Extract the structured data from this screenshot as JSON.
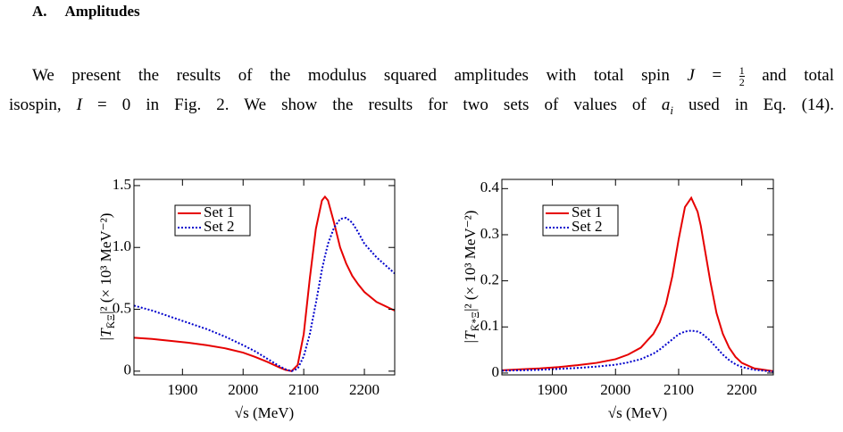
{
  "heading": {
    "number": "A.",
    "title": "Amplitudes"
  },
  "paragraph": {
    "line1": [
      "We present the results of the modulus squared amplitudes with total spin ",
      "J",
      " = ",
      "1",
      "2",
      " and total"
    ],
    "line2": [
      "isospin, ",
      "I",
      " = 0 in Fig. 2. We show the results for two sets of values of ",
      "a",
      "i",
      " used in Eq. (14)."
    ]
  },
  "chart_data": [
    {
      "type": "line",
      "ylabel": [
        "|T",
        "K̄Ξ",
        "|² (× 10³ MeV⁻²)"
      ],
      "xlabel": "√s (MeV)",
      "x": [
        1820,
        1850,
        1880,
        1910,
        1940,
        1970,
        2000,
        2020,
        2040,
        2060,
        2070,
        2080,
        2090,
        2100,
        2110,
        2120,
        2130,
        2135,
        2140,
        2150,
        2160,
        2170,
        2180,
        2190,
        2200,
        2220,
        2250
      ],
      "series": [
        {
          "name": "Set 1",
          "color": "#e60000",
          "linestyle": "solid",
          "values": [
            0.27,
            0.26,
            0.245,
            0.23,
            0.21,
            0.185,
            0.15,
            0.115,
            0.075,
            0.03,
            0.01,
            0.0,
            0.05,
            0.3,
            0.75,
            1.15,
            1.38,
            1.41,
            1.38,
            1.2,
            1.0,
            0.87,
            0.77,
            0.7,
            0.64,
            0.56,
            0.49
          ]
        },
        {
          "name": "Set 2",
          "color": "#0000cc",
          "linestyle": "dotted",
          "values": [
            0.53,
            0.49,
            0.44,
            0.39,
            0.34,
            0.28,
            0.21,
            0.16,
            0.1,
            0.04,
            0.015,
            0.0,
            0.02,
            0.12,
            0.3,
            0.55,
            0.82,
            0.93,
            1.03,
            1.16,
            1.23,
            1.24,
            1.2,
            1.12,
            1.03,
            0.92,
            0.79
          ]
        }
      ],
      "xlim": [
        1820,
        2250
      ],
      "xticks": [
        1900,
        2000,
        2100,
        2200
      ],
      "ylim": [
        -0.03,
        1.55
      ],
      "yticks": [
        0,
        {
          "value": 0.5,
          "label": "0.5"
        },
        {
          "value": 1,
          "label": "1.0"
        },
        1.5
      ],
      "legend": "upper left"
    },
    {
      "type": "line",
      "ylabel": [
        "|T",
        "K̄*Ξ",
        "|² (× 10³ MeV⁻²)"
      ],
      "xlabel": "√s (MeV)",
      "x": [
        1820,
        1850,
        1880,
        1910,
        1940,
        1970,
        2000,
        2020,
        2040,
        2060,
        2070,
        2080,
        2090,
        2100,
        2110,
        2120,
        2130,
        2135,
        2140,
        2150,
        2160,
        2170,
        2180,
        2190,
        2200,
        2220,
        2250
      ],
      "series": [
        {
          "name": "Set 1",
          "color": "#e60000",
          "linestyle": "solid",
          "values": [
            0.006,
            0.008,
            0.01,
            0.013,
            0.017,
            0.022,
            0.03,
            0.04,
            0.055,
            0.085,
            0.11,
            0.15,
            0.21,
            0.29,
            0.36,
            0.38,
            0.35,
            0.32,
            0.28,
            0.2,
            0.13,
            0.085,
            0.055,
            0.035,
            0.022,
            0.01,
            0.004
          ]
        },
        {
          "name": "Set 2",
          "color": "#0000cc",
          "linestyle": "dotted",
          "values": [
            0.005,
            0.006,
            0.007,
            0.009,
            0.011,
            0.014,
            0.018,
            0.023,
            0.03,
            0.042,
            0.051,
            0.062,
            0.073,
            0.084,
            0.09,
            0.092,
            0.09,
            0.087,
            0.082,
            0.07,
            0.055,
            0.04,
            0.028,
            0.019,
            0.013,
            0.007,
            0.003
          ]
        }
      ],
      "xlim": [
        1820,
        2250
      ],
      "xticks": [
        1900,
        2000,
        2100,
        2200
      ],
      "ylim": [
        -0.004,
        0.42
      ],
      "yticks": [
        0,
        0.1,
        0.2,
        0.3,
        0.4
      ],
      "legend": "upper left"
    }
  ]
}
